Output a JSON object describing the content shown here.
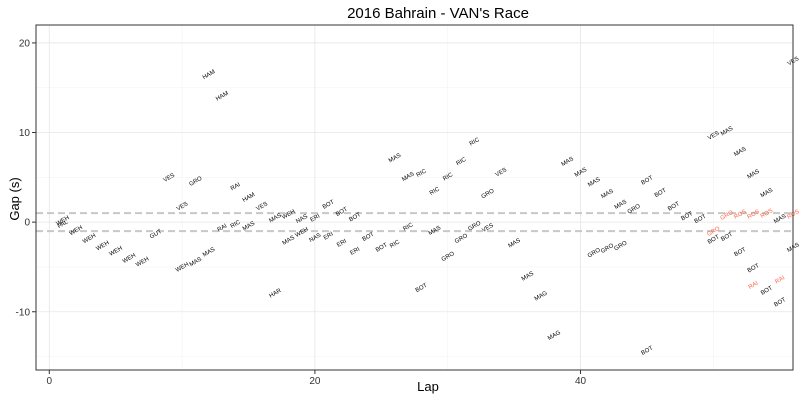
{
  "chart_data": {
    "type": "scatter",
    "title": "2016 Bahrain - VAN's Race",
    "xlabel": "Lap",
    "ylabel": "Gap (s)",
    "xlim": [
      -1,
      56
    ],
    "ylim": [
      -16.5,
      22
    ],
    "x_ticks": [
      0,
      20,
      40
    ],
    "y_ticks": [
      -10,
      0,
      10,
      20
    ],
    "reference_lines": [
      1,
      -1
    ],
    "grid": true,
    "colors": {
      "normal": "#000000",
      "highlight": "#ff6347",
      "ref_line": "#c8c8c8"
    },
    "points": [
      {
        "lap": 1,
        "gap": 0.2,
        "driver": "WEH",
        "highlight": false
      },
      {
        "lap": 1,
        "gap": -0.2,
        "driver": "PAL",
        "highlight": false
      },
      {
        "lap": 2,
        "gap": -0.9,
        "driver": "WEH",
        "highlight": false
      },
      {
        "lap": 3,
        "gap": -1.8,
        "driver": "WEH",
        "highlight": false
      },
      {
        "lap": 4,
        "gap": -2.6,
        "driver": "WEH",
        "highlight": false
      },
      {
        "lap": 5,
        "gap": -3.2,
        "driver": "WEH",
        "highlight": false
      },
      {
        "lap": 6,
        "gap": -4.0,
        "driver": "WEH",
        "highlight": false
      },
      {
        "lap": 7,
        "gap": -4.4,
        "driver": "WEH",
        "highlight": false
      },
      {
        "lap": 8,
        "gap": -1.3,
        "driver": "GUT",
        "highlight": false
      },
      {
        "lap": 9,
        "gap": 5.0,
        "driver": "VES",
        "highlight": false
      },
      {
        "lap": 10,
        "gap": 1.8,
        "driver": "VES",
        "highlight": false
      },
      {
        "lap": 10,
        "gap": -5.0,
        "driver": "WEH",
        "highlight": false
      },
      {
        "lap": 11,
        "gap": 4.6,
        "driver": "GRO",
        "highlight": false
      },
      {
        "lap": 11,
        "gap": -4.4,
        "driver": "MAS",
        "highlight": false
      },
      {
        "lap": 12,
        "gap": 16.5,
        "driver": "HAM",
        "highlight": false
      },
      {
        "lap": 12,
        "gap": -3.3,
        "driver": "MAS",
        "highlight": false
      },
      {
        "lap": 13,
        "gap": 14.1,
        "driver": "HAM",
        "highlight": false
      },
      {
        "lap": 13,
        "gap": -0.6,
        "driver": "RAI",
        "highlight": false
      },
      {
        "lap": 14,
        "gap": 4.0,
        "driver": "RAI",
        "highlight": false
      },
      {
        "lap": 14,
        "gap": -0.2,
        "driver": "RIC",
        "highlight": false
      },
      {
        "lap": 15,
        "gap": 2.8,
        "driver": "HAM",
        "highlight": false
      },
      {
        "lap": 15,
        "gap": -0.4,
        "driver": "MAS",
        "highlight": false
      },
      {
        "lap": 16,
        "gap": 1.8,
        "driver": "VES",
        "highlight": false
      },
      {
        "lap": 17,
        "gap": 0.5,
        "driver": "MAS",
        "highlight": false
      },
      {
        "lap": 17,
        "gap": -7.9,
        "driver": "HAR",
        "highlight": false
      },
      {
        "lap": 18,
        "gap": 0.9,
        "driver": "WEH",
        "highlight": false
      },
      {
        "lap": 18,
        "gap": -2.0,
        "driver": "MAS",
        "highlight": false
      },
      {
        "lap": 19,
        "gap": 0.4,
        "driver": "NAS",
        "highlight": false
      },
      {
        "lap": 19,
        "gap": -1.1,
        "driver": "WEH",
        "highlight": false
      },
      {
        "lap": 20,
        "gap": 0.5,
        "driver": "ERI",
        "highlight": false
      },
      {
        "lap": 20,
        "gap": -1.7,
        "driver": "NAS",
        "highlight": false
      },
      {
        "lap": 21,
        "gap": 2.0,
        "driver": "BOT",
        "highlight": false
      },
      {
        "lap": 21,
        "gap": -1.5,
        "driver": "ERI",
        "highlight": false
      },
      {
        "lap": 22,
        "gap": 1.2,
        "driver": "BOT",
        "highlight": false
      },
      {
        "lap": 22,
        "gap": -2.3,
        "driver": "ERI",
        "highlight": false
      },
      {
        "lap": 23,
        "gap": 0.6,
        "driver": "BOT",
        "highlight": false
      },
      {
        "lap": 23,
        "gap": -3.2,
        "driver": "ERI",
        "highlight": false
      },
      {
        "lap": 24,
        "gap": -1.6,
        "driver": "BOT",
        "highlight": false
      },
      {
        "lap": 25,
        "gap": -2.8,
        "driver": "BOT",
        "highlight": false
      },
      {
        "lap": 26,
        "gap": 7.2,
        "driver": "MAS",
        "highlight": false
      },
      {
        "lap": 26,
        "gap": -2.4,
        "driver": "RIC",
        "highlight": false
      },
      {
        "lap": 27,
        "gap": 5.1,
        "driver": "MAS",
        "highlight": false
      },
      {
        "lap": 27,
        "gap": -0.5,
        "driver": "RIC",
        "highlight": false
      },
      {
        "lap": 28,
        "gap": 5.5,
        "driver": "RIC",
        "highlight": false
      },
      {
        "lap": 28,
        "gap": -7.3,
        "driver": "BOT",
        "highlight": false
      },
      {
        "lap": 29,
        "gap": 3.5,
        "driver": "RIC",
        "highlight": false
      },
      {
        "lap": 29,
        "gap": -0.9,
        "driver": "MAS",
        "highlight": false
      },
      {
        "lap": 30,
        "gap": 5.1,
        "driver": "RIC",
        "highlight": false
      },
      {
        "lap": 30,
        "gap": -3.8,
        "driver": "GRO",
        "highlight": false
      },
      {
        "lap": 31,
        "gap": 6.8,
        "driver": "RIC",
        "highlight": false
      },
      {
        "lap": 31,
        "gap": -1.8,
        "driver": "GRO",
        "highlight": false
      },
      {
        "lap": 32,
        "gap": 9.0,
        "driver": "RIC",
        "highlight": false
      },
      {
        "lap": 32,
        "gap": -0.4,
        "driver": "GRO",
        "highlight": false
      },
      {
        "lap": 33,
        "gap": 3.2,
        "driver": "GRO",
        "highlight": false
      },
      {
        "lap": 33,
        "gap": -0.6,
        "driver": "VES",
        "highlight": false
      },
      {
        "lap": 34,
        "gap": 5.6,
        "driver": "VES",
        "highlight": false
      },
      {
        "lap": 35,
        "gap": -2.3,
        "driver": "MAS",
        "highlight": false
      },
      {
        "lap": 36,
        "gap": -6.0,
        "driver": "MAS",
        "highlight": false
      },
      {
        "lap": 37,
        "gap": -8.2,
        "driver": "MAG",
        "highlight": false
      },
      {
        "lap": 38,
        "gap": -12.6,
        "driver": "MAG",
        "highlight": false
      },
      {
        "lap": 39,
        "gap": 6.8,
        "driver": "MAS",
        "highlight": false
      },
      {
        "lap": 40,
        "gap": 5.6,
        "driver": "MAS",
        "highlight": false
      },
      {
        "lap": 41,
        "gap": 4.5,
        "driver": "MAS",
        "highlight": false
      },
      {
        "lap": 41,
        "gap": -3.4,
        "driver": "GRO",
        "highlight": false
      },
      {
        "lap": 42,
        "gap": 3.2,
        "driver": "MAS",
        "highlight": false
      },
      {
        "lap": 42,
        "gap": -2.9,
        "driver": "GRO",
        "highlight": false
      },
      {
        "lap": 43,
        "gap": 2.0,
        "driver": "MAS",
        "highlight": false
      },
      {
        "lap": 43,
        "gap": -2.6,
        "driver": "GRO",
        "highlight": false
      },
      {
        "lap": 44,
        "gap": 1.5,
        "driver": "GRO",
        "highlight": false
      },
      {
        "lap": 45,
        "gap": 4.7,
        "driver": "BOT",
        "highlight": false
      },
      {
        "lap": 45,
        "gap": -14.3,
        "driver": "BOT",
        "highlight": false
      },
      {
        "lap": 46,
        "gap": 3.3,
        "driver": "BOT",
        "highlight": false
      },
      {
        "lap": 47,
        "gap": 1.8,
        "driver": "BOT",
        "highlight": false
      },
      {
        "lap": 48,
        "gap": 0.7,
        "driver": "BOT",
        "highlight": false
      },
      {
        "lap": 49,
        "gap": 0.4,
        "driver": "BOT",
        "highlight": false
      },
      {
        "lap": 50,
        "gap": 9.7,
        "driver": "VES",
        "highlight": false
      },
      {
        "lap": 50,
        "gap": -1.0,
        "driver": "GRO",
        "highlight": true
      },
      {
        "lap": 50,
        "gap": -1.9,
        "driver": "BOT",
        "highlight": false
      },
      {
        "lap": 51,
        "gap": 10.2,
        "driver": "MAS",
        "highlight": false
      },
      {
        "lap": 51,
        "gap": 0.8,
        "driver": "GRO",
        "highlight": true
      },
      {
        "lap": 51,
        "gap": -1.6,
        "driver": "BOT",
        "highlight": false
      },
      {
        "lap": 52,
        "gap": 7.9,
        "driver": "MAS",
        "highlight": false
      },
      {
        "lap": 52,
        "gap": 0.9,
        "driver": "ROS",
        "highlight": true
      },
      {
        "lap": 52,
        "gap": -3.3,
        "driver": "BOT",
        "highlight": false
      },
      {
        "lap": 53,
        "gap": 5.4,
        "driver": "MAS",
        "highlight": false
      },
      {
        "lap": 53,
        "gap": 0.9,
        "driver": "ROS",
        "highlight": true
      },
      {
        "lap": 53,
        "gap": -5.1,
        "driver": "BOT",
        "highlight": false
      },
      {
        "lap": 53,
        "gap": -7.0,
        "driver": "RAI",
        "highlight": true
      },
      {
        "lap": 54,
        "gap": 3.3,
        "driver": "MAS",
        "highlight": false
      },
      {
        "lap": 54,
        "gap": 1.0,
        "driver": "ROS",
        "highlight": true
      },
      {
        "lap": 54,
        "gap": -7.6,
        "driver": "BOT",
        "highlight": false
      },
      {
        "lap": 55,
        "gap": 0.4,
        "driver": "MAS",
        "highlight": false
      },
      {
        "lap": 55,
        "gap": -6.4,
        "driver": "RAI",
        "highlight": true
      },
      {
        "lap": 55,
        "gap": -8.9,
        "driver": "BOT",
        "highlight": false
      },
      {
        "lap": 56,
        "gap": 18.0,
        "driver": "VES",
        "highlight": false
      },
      {
        "lap": 56,
        "gap": 0.9,
        "driver": "ROS",
        "highlight": true
      },
      {
        "lap": 56,
        "gap": -2.8,
        "driver": "MAS",
        "highlight": false
      }
    ]
  }
}
